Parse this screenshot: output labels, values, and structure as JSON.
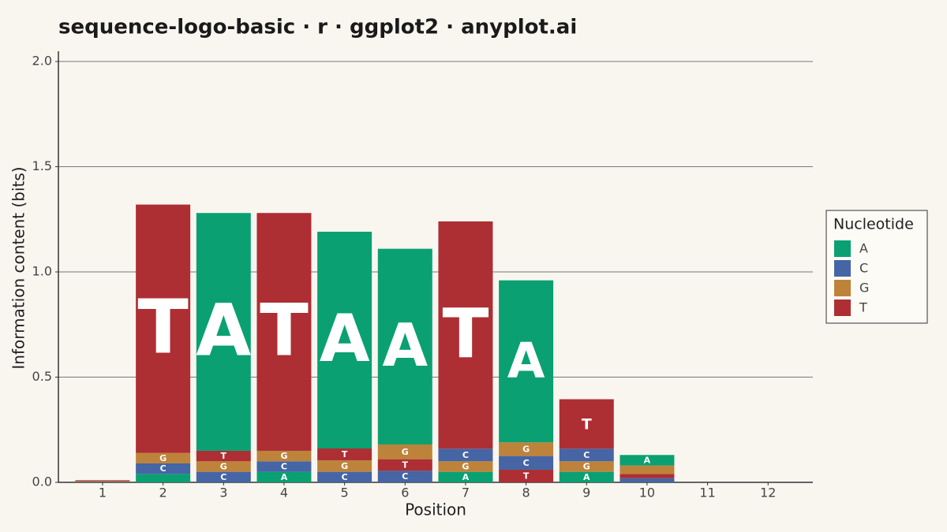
{
  "chart_data": {
    "type": "stacked-bar",
    "title": "sequence-logo-basic · r · ggplot2 · anyplot.ai",
    "x_label": "Position",
    "y_label": "Information content (bits)",
    "categories": [
      "1",
      "2",
      "3",
      "4",
      "5",
      "6",
      "7",
      "8",
      "9",
      "10",
      "11",
      "12"
    ],
    "series": [
      {
        "name": "A",
        "color": "#0aa072",
        "values": [
          0.001,
          0.04,
          1.13,
          0.05,
          1.03,
          0.93,
          0.05,
          0.77,
          0.05,
          0.05,
          0,
          0
        ]
      },
      {
        "name": "C",
        "color": "#4565a5",
        "values": [
          0.002,
          0.05,
          0.05,
          0.05,
          0.05,
          0.055,
          0.06,
          0.065,
          0.06,
          0.02,
          0,
          0
        ]
      },
      {
        "name": "G",
        "color": "#bd833a",
        "values": [
          0.003,
          0.05,
          0.05,
          0.05,
          0.055,
          0.07,
          0.05,
          0.065,
          0.05,
          0.04,
          0,
          0
        ]
      },
      {
        "name": "T",
        "color": "#ad2e33",
        "values": [
          0.004,
          1.18,
          0.05,
          1.13,
          0.056,
          0.055,
          1.08,
          0.06,
          0.235,
          0.02,
          0,
          0
        ]
      }
    ],
    "legend_title": "Nucleotide",
    "legend_position": "right",
    "ylim": [
      0,
      2.0
    ],
    "yticks": [
      {
        "value": 0,
        "label": "0.0"
      },
      0.5,
      {
        "value": 1,
        "label": "1.0"
      },
      1.5,
      {
        "value": 2,
        "label": "2.0"
      }
    ],
    "grid": true
  }
}
